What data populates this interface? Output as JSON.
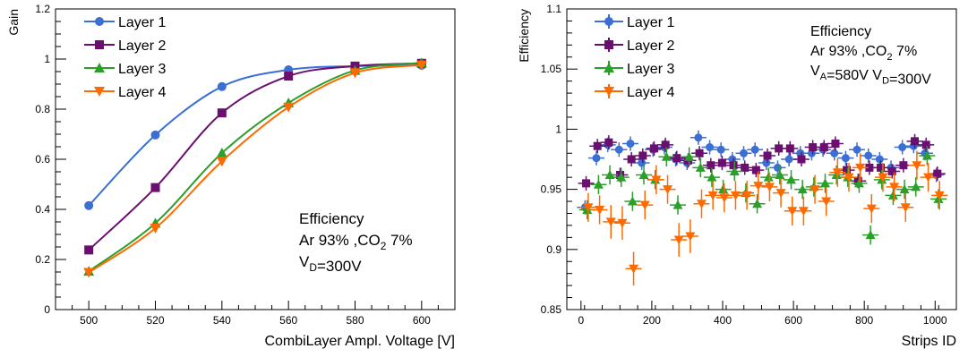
{
  "chart_data": [
    {
      "type": "line",
      "title": "",
      "xlabel": "CombiLayer Ampl. Voltage [V]",
      "ylabel": "Gain",
      "xlim": [
        490,
        610
      ],
      "ylim": [
        0,
        1.2
      ],
      "xticks": [
        "500",
        "520",
        "540",
        "560",
        "580",
        "600"
      ],
      "yticks": [
        "0",
        "0.2",
        "0.4",
        "0.6",
        "0.8",
        "1",
        "1.2"
      ],
      "legend_position": "top-left",
      "annotation_lines": [
        "Efficiency",
        "Ar 93% ,CO₂ 7%",
        "V_D=300V"
      ],
      "x": [
        500,
        520,
        540,
        560,
        580,
        600
      ],
      "series": [
        {
          "name": "Layer 1",
          "color": "#3b6fd4",
          "marker": "circle",
          "values": [
            0.415,
            0.697,
            0.89,
            0.957,
            0.972,
            0.975
          ]
        },
        {
          "name": "Layer 2",
          "color": "#6a0f70",
          "marker": "square",
          "values": [
            0.238,
            0.487,
            0.785,
            0.932,
            0.972,
            0.983
          ]
        },
        {
          "name": "Layer 3",
          "color": "#2aa02a",
          "marker": "triangle-up",
          "values": [
            0.153,
            0.345,
            0.625,
            0.825,
            0.955,
            0.985
          ]
        },
        {
          "name": "Layer 4",
          "color": "#ff6a00",
          "marker": "triangle-down",
          "values": [
            0.148,
            0.325,
            0.592,
            0.808,
            0.945,
            0.976
          ]
        }
      ]
    },
    {
      "type": "scatter",
      "title": "",
      "xlabel": "Strips ID",
      "ylabel": "Efficiency",
      "xlim": [
        -40,
        1060
      ],
      "ylim": [
        0.85,
        1.1
      ],
      "xticks": [
        "0",
        "200",
        "400",
        "600",
        "800",
        "1000"
      ],
      "yticks": [
        "0.85",
        "0.9",
        "0.95",
        "1",
        "1.05",
        "1.1"
      ],
      "legend_position": "top-left",
      "annotation_lines": [
        "Efficiency",
        "Ar 93% ,CO₂ 7%",
        "V_A=580V   V_D=300V"
      ],
      "x": [
        16,
        48,
        80,
        112,
        144,
        176,
        208,
        240,
        272,
        304,
        336,
        368,
        400,
        432,
        464,
        496,
        528,
        560,
        592,
        624,
        656,
        688,
        720,
        752,
        784,
        816,
        848,
        880,
        912,
        944,
        976,
        1008
      ],
      "series": [
        {
          "name": "Layer 1",
          "color": "#3b6fd4",
          "marker": "circle",
          "values": [
            0.935,
            0.976,
            0.987,
            0.983,
            0.988,
            0.972,
            0.983,
            0.985,
            0.975,
            0.972,
            0.993,
            0.985,
            0.983,
            0.975,
            0.98,
            0.983,
            0.972,
            0.968,
            0.975,
            0.98,
            0.98,
            0.983,
            0.98,
            0.976,
            0.983,
            0.978,
            0.975,
            0.968,
            0.985,
            0.986,
            0.98,
            0.962
          ]
        },
        {
          "name": "Layer 2",
          "color": "#6a0f70",
          "marker": "square",
          "values": [
            0.955,
            0.986,
            0.989,
            0.962,
            0.975,
            0.978,
            0.984,
            0.987,
            0.976,
            0.974,
            0.98,
            0.97,
            0.972,
            0.97,
            0.968,
            0.966,
            0.978,
            0.984,
            0.984,
            0.975,
            0.985,
            0.985,
            0.988,
            0.966,
            0.957,
            0.968,
            0.968,
            0.965,
            0.97,
            0.99,
            0.987,
            0.963
          ]
        },
        {
          "name": "Layer 3",
          "color": "#2aa02a",
          "marker": "triangle-up",
          "values": [
            0.933,
            0.954,
            0.962,
            0.96,
            0.94,
            0.962,
            0.958,
            0.977,
            0.937,
            0.977,
            0.968,
            0.96,
            0.95,
            0.965,
            0.947,
            0.938,
            0.96,
            0.962,
            0.958,
            0.95,
            0.952,
            0.955,
            0.962,
            0.96,
            0.955,
            0.912,
            0.958,
            0.945,
            0.95,
            0.952,
            0.978,
            0.942
          ]
        },
        {
          "name": "Layer 4",
          "color": "#ff6a00",
          "marker": "triangle-down",
          "values": [
            0.935,
            0.933,
            0.923,
            0.922,
            0.884,
            0.937,
            0.958,
            0.95,
            0.908,
            0.911,
            0.938,
            0.945,
            0.943,
            0.945,
            0.945,
            0.953,
            0.952,
            0.947,
            0.932,
            0.932,
            0.95,
            0.94,
            0.964,
            0.96,
            0.968,
            0.934,
            0.96,
            0.952,
            0.935,
            0.97,
            0.96,
            0.945
          ]
        }
      ]
    }
  ]
}
